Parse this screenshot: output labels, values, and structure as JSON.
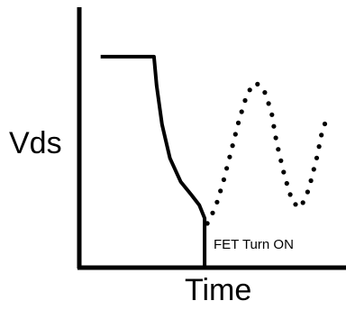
{
  "chart_data": {
    "type": "line",
    "title": "",
    "xlabel": "Time",
    "ylabel": "Vds",
    "annotations": [
      "FET Turn ON"
    ],
    "grid": false,
    "series": [
      {
        "style": "solid",
        "color": "#000000",
        "points": [
          [
            0.08,
            0.81
          ],
          [
            0.28,
            0.81
          ],
          [
            0.29,
            0.7
          ],
          [
            0.31,
            0.55
          ],
          [
            0.34,
            0.42
          ],
          [
            0.38,
            0.33
          ],
          [
            0.42,
            0.28
          ],
          [
            0.45,
            0.24
          ],
          [
            0.47,
            0.19
          ],
          [
            0.47,
            0.0
          ],
          [
            1.0,
            0.0
          ]
        ]
      },
      {
        "style": "dotted",
        "color": "#000000",
        "points": [
          [
            0.48,
            0.17
          ],
          [
            0.51,
            0.23
          ],
          [
            0.54,
            0.33
          ],
          [
            0.57,
            0.45
          ],
          [
            0.6,
            0.57
          ],
          [
            0.63,
            0.67
          ],
          [
            0.66,
            0.71
          ],
          [
            0.69,
            0.69
          ],
          [
            0.72,
            0.6
          ],
          [
            0.74,
            0.48
          ],
          [
            0.77,
            0.35
          ],
          [
            0.8,
            0.25
          ],
          [
            0.83,
            0.23
          ],
          [
            0.86,
            0.3
          ],
          [
            0.89,
            0.42
          ],
          [
            0.91,
            0.52
          ],
          [
            0.93,
            0.58
          ]
        ]
      }
    ]
  }
}
